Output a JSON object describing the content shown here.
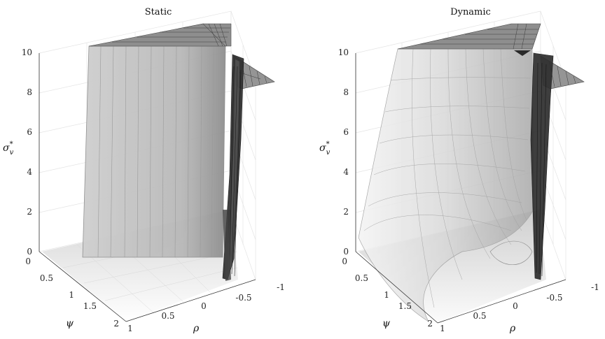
{
  "chart_data": [
    {
      "type": "surface",
      "title": "Static",
      "zlabel": "σ*v",
      "zlabel_main": "σ",
      "zlabel_sup": "*",
      "zlabel_sub": "v",
      "xlabel": "ρ",
      "ylabel": "ψ",
      "zlim": [
        0,
        10
      ],
      "xlim": [
        -1,
        1
      ],
      "ylim": [
        0,
        2
      ],
      "z_ticks": [
        "0",
        "2",
        "4",
        "6",
        "8",
        "10"
      ],
      "rho_ticks": [
        "1",
        "0.5",
        "0",
        "-0.5",
        "-1"
      ],
      "psi_ticks": [
        "0",
        "0.5",
        "1",
        "1.5",
        "2"
      ],
      "grid": true
    },
    {
      "type": "surface",
      "title": "Dynamic",
      "zlabel": "σ*v",
      "zlabel_main": "σ",
      "zlabel_sup": "*",
      "zlabel_sub": "v",
      "xlabel": "ρ",
      "ylabel": "ψ",
      "zlim": [
        0,
        10
      ],
      "xlim": [
        -1,
        1
      ],
      "ylim": [
        0,
        2
      ],
      "z_ticks": [
        "0",
        "2",
        "4",
        "6",
        "8",
        "10"
      ],
      "rho_ticks": [
        "1",
        "0.5",
        "0",
        "-0.5",
        "-1"
      ],
      "psi_ticks": [
        "0",
        "0.5",
        "1",
        "1.5",
        "2"
      ],
      "grid": true
    }
  ]
}
